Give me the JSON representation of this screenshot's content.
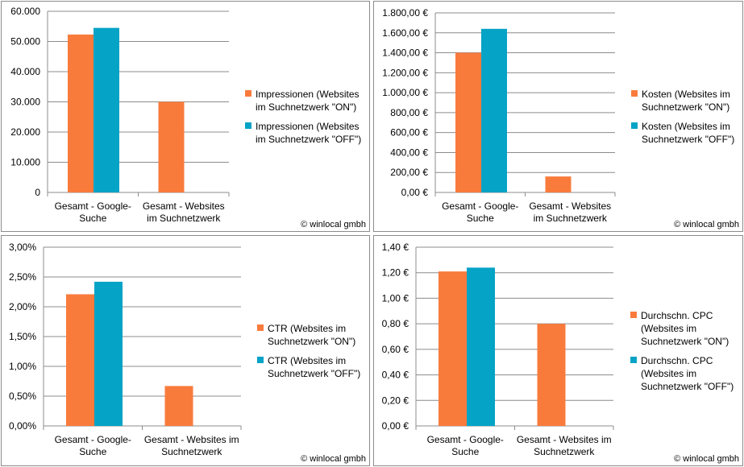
{
  "colors": {
    "on": "#f97b3c",
    "off": "#05a3c6",
    "grid": "#8c8c8c"
  },
  "copyright": "© winlocal gmbh",
  "charts": [
    {
      "type": "bar",
      "categories": [
        [
          "Gesamt - Google-",
          "Suche"
        ],
        [
          "Gesamt - Websites",
          "im Suchnetzwerk"
        ]
      ],
      "yticks": [
        "0",
        "10.000",
        "20.000",
        "30.000",
        "40.000",
        "50.000",
        "60.000"
      ],
      "ylim": [
        0,
        60000
      ],
      "series": [
        {
          "name": "Impressionen (Websites im Suchnetzwerk \"ON\")",
          "legend_lines": [
            "Impressionen (Websites",
            "im Suchnetzwerk \"ON\")"
          ],
          "values": [
            52300,
            30000
          ]
        },
        {
          "name": "Impressionen (Websites im Suchnetzwerk \"OFF\")",
          "legend_lines": [
            "Impressionen (Websites",
            "im Suchnetzwerk \"OFF\")"
          ],
          "values": [
            54500,
            0
          ]
        }
      ]
    },
    {
      "type": "bar",
      "categories": [
        [
          "Gesamt - Google-",
          "Suche"
        ],
        [
          "Gesamt - Websites",
          "im Suchnetzwerk"
        ]
      ],
      "yticks": [
        "0,00 €",
        "200,00 €",
        "400,00 €",
        "600,00 €",
        "800,00 €",
        "1.000,00 €",
        "1.200,00 €",
        "1.400,00 €",
        "1.600,00 €",
        "1.800,00 €"
      ],
      "ylim": [
        0,
        1800
      ],
      "series": [
        {
          "name": "Kosten (Websites im Suchnetzwerk \"ON\")",
          "legend_lines": [
            "Kosten (Websites im",
            "Suchnetzwerk \"ON\")"
          ],
          "values": [
            1400,
            160
          ]
        },
        {
          "name": "Kosten (Websites im Suchnetzwerk \"OFF\")",
          "legend_lines": [
            "Kosten (Websites im",
            "Suchnetzwerk \"OFF\")"
          ],
          "values": [
            1640,
            0
          ]
        }
      ]
    },
    {
      "type": "bar",
      "categories": [
        [
          "Gesamt - Google-",
          "Suche"
        ],
        [
          "Gesamt - Websites im",
          "Suchnetzwerk"
        ]
      ],
      "yticks": [
        "0,00%",
        "0,50%",
        "1,00%",
        "1,50%",
        "2,00%",
        "2,50%",
        "3,00%"
      ],
      "ylim": [
        0,
        3
      ],
      "series": [
        {
          "name": "CTR (Websites im Suchnetzwerk \"ON\")",
          "legend_lines": [
            "CTR (Websites im",
            "Suchnetzwerk \"ON\")"
          ],
          "values": [
            2.21,
            0.67
          ]
        },
        {
          "name": "CTR (Websites im Suchnetzwerk \"OFF\")",
          "legend_lines": [
            "CTR (Websites im",
            "Suchnetzwerk \"OFF\")"
          ],
          "values": [
            2.42,
            0
          ]
        }
      ]
    },
    {
      "type": "bar",
      "categories": [
        [
          "Gesamt - Google-",
          "Suche"
        ],
        [
          "Gesamt - Websites im",
          "Suchnetzwerk"
        ]
      ],
      "yticks": [
        "0,00 €",
        "0,20 €",
        "0,40 €",
        "0,60 €",
        "0,80 €",
        "1,00 €",
        "1,20 €",
        "1,40 €"
      ],
      "ylim": [
        0,
        1.4
      ],
      "series": [
        {
          "name": "Durchschn. CPC (Websites im Suchnetzwerk \"ON\")",
          "legend_lines": [
            "Durchschn. CPC",
            "(Websites im",
            "Suchnetzwerk \"ON\")"
          ],
          "values": [
            1.21,
            0.8
          ]
        },
        {
          "name": "Durchschn. CPC (Websites im Suchnetzwerk \"OFF\")",
          "legend_lines": [
            "Durchschn. CPC",
            "(Websites im",
            "Suchnetzwerk \"OFF\")"
          ],
          "values": [
            1.24,
            0
          ]
        }
      ]
    }
  ]
}
